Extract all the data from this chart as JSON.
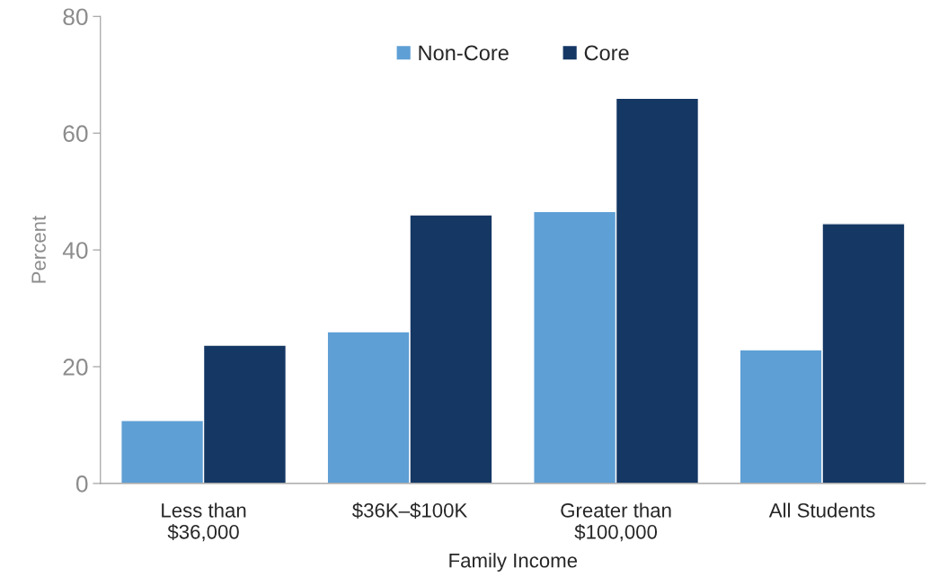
{
  "chart_data": {
    "type": "bar",
    "xlabel": "Family Income",
    "ylabel": "Percent",
    "categories": [
      "Less than\n$36,000",
      "$36K–$100K",
      "Greater than\n$100,000",
      "All Students"
    ],
    "series": [
      {
        "name": "Non-Core",
        "color": "#5e9fd5",
        "values": [
          10.8,
          26.0,
          46.6,
          22.9
        ]
      },
      {
        "name": "Core",
        "color": "#143764",
        "values": [
          23.7,
          46.0,
          66.0,
          44.5
        ]
      }
    ],
    "ylim": [
      0,
      80
    ],
    "yticks": [
      0,
      20,
      40,
      60,
      80
    ],
    "grid": false,
    "legend": "top"
  }
}
